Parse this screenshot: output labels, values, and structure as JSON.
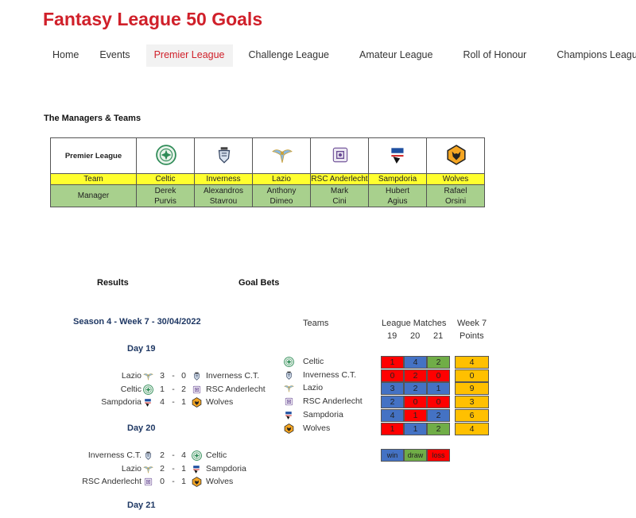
{
  "site": {
    "title": "Fantasy League 50 Goals"
  },
  "nav": [
    "Home",
    "Events",
    "Premier League",
    "Challenge League",
    "Amateur League",
    "Roll of Honour",
    "Champions League"
  ],
  "nav_active": "Premier League",
  "managers": {
    "section_title": "The Managers & Teams",
    "header": "Premier League",
    "team_label": "Team",
    "manager_label": "Manager",
    "columns": [
      {
        "team": "Celtic",
        "first": "Derek",
        "last": "Purvis",
        "logo": "celtic-logo"
      },
      {
        "team": "Inverness",
        "first": "Alexandros",
        "last": "Stavrou",
        "logo": "inverness-logo"
      },
      {
        "team": "Lazio",
        "first": "Anthony",
        "last": "Dimeo",
        "logo": "lazio-logo"
      },
      {
        "team": "RSC Anderlecht",
        "first": "Mark",
        "last": "Cini",
        "logo": "anderlecht-logo"
      },
      {
        "team": "Sampdoria",
        "first": "Hubert",
        "last": "Agius",
        "logo": "sampdoria-logo"
      },
      {
        "team": "Wolves",
        "first": "Rafael",
        "last": "Orsini",
        "logo": "wolves-logo"
      }
    ]
  },
  "results": {
    "title": "Results",
    "season": "Season 4 - Week 7 - 30/04/2022",
    "days": [
      {
        "label": "Day 19",
        "matches": [
          {
            "home": "Lazio",
            "hs": "3",
            "as": "0",
            "away": "Inverness C.T."
          },
          {
            "home": "Celtic",
            "hs": "1",
            "as": "2",
            "away": "RSC Anderlecht"
          },
          {
            "home": "Sampdoria",
            "hs": "4",
            "as": "1",
            "away": "Wolves"
          }
        ]
      },
      {
        "label": "Day 20",
        "matches": [
          {
            "home": "Inverness C.T.",
            "hs": "2",
            "as": "4",
            "away": "Celtic"
          },
          {
            "home": "Lazio",
            "hs": "2",
            "as": "1",
            "away": "Sampdoria"
          },
          {
            "home": "RSC Anderlecht",
            "hs": "0",
            "as": "1",
            "away": "Wolves"
          }
        ]
      },
      {
        "label": "Day 21",
        "matches": []
      }
    ]
  },
  "goal_bets": {
    "title": "Goal Bets",
    "teams_header": "Teams",
    "matches_header": "League Matches",
    "week_header": "Week 7",
    "points_header": "Points",
    "match_numbers": [
      "19",
      "20",
      "21"
    ],
    "rows": [
      {
        "team": "Celtic",
        "values": [
          "1",
          "4",
          "2"
        ],
        "results": [
          "loss",
          "win",
          "draw"
        ],
        "points": "4"
      },
      {
        "team": "Inverness C.T.",
        "values": [
          "0",
          "2",
          "0"
        ],
        "results": [
          "loss",
          "loss",
          "loss"
        ],
        "points": "0"
      },
      {
        "team": "Lazio",
        "values": [
          "3",
          "2",
          "1"
        ],
        "results": [
          "win",
          "win",
          "win"
        ],
        "points": "9"
      },
      {
        "team": "RSC Anderlecht",
        "values": [
          "2",
          "0",
          "0"
        ],
        "results": [
          "win",
          "loss",
          "loss"
        ],
        "points": "3"
      },
      {
        "team": "Sampdoria",
        "values": [
          "4",
          "1",
          "2"
        ],
        "results": [
          "win",
          "loss",
          "win"
        ],
        "points": "6"
      },
      {
        "team": "Wolves",
        "values": [
          "1",
          "1",
          "2"
        ],
        "results": [
          "loss",
          "win",
          "draw"
        ],
        "points": "4"
      }
    ],
    "legend": [
      {
        "label": "win",
        "result": "win"
      },
      {
        "label": "draw",
        "result": "draw"
      },
      {
        "label": "loss",
        "result": "loss"
      }
    ]
  },
  "colors": {
    "title_red": "#d0202a",
    "team_row_yellow": "#ffff2e",
    "manager_row_green": "#a8d08d",
    "win_blue": "#4472c4",
    "draw_green": "#70ad47",
    "loss_red": "#ff0000",
    "points_orange": "#ffc000",
    "heading_navy": "#1f3864"
  }
}
